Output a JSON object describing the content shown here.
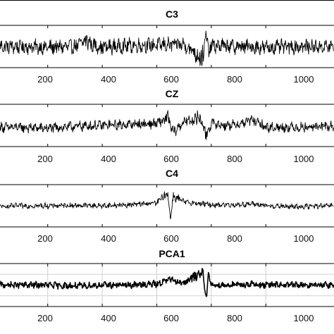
{
  "chart_data": [
    {
      "type": "line",
      "title": "C3",
      "xlabel": "",
      "ylabel": "",
      "xlim": [
        25,
        1250
      ],
      "xticks": [
        200,
        400,
        600,
        800,
        1000
      ],
      "xtick_labels": [
        "200",
        "400",
        "600",
        "800",
        "1000"
      ],
      "grid": false,
      "series": [
        {
          "x": [
            25,
            100,
            200,
            300,
            345,
            360,
            400,
            500,
            600,
            700,
            770,
            780,
            790,
            800,
            900,
            1000,
            1100,
            1250
          ],
          "y": [
            0.0,
            0.0,
            -0.05,
            0.0,
            0.35,
            0.1,
            -0.05,
            0.05,
            0.08,
            0.1,
            -0.6,
            0.7,
            -0.3,
            0.05,
            0.0,
            -0.05,
            0.0,
            0.0
          ]
        }
      ]
    },
    {
      "type": "line",
      "title": "CZ",
      "xlabel": "",
      "ylabel": "",
      "xlim": [
        25,
        1250
      ],
      "xticks": [
        200,
        400,
        600,
        800,
        1000
      ],
      "xtick_labels": [
        "200",
        "400",
        "600",
        "800",
        "1000"
      ],
      "grid": false,
      "series": [
        {
          "x": [
            25,
            100,
            200,
            300,
            400,
            500,
            600,
            640,
            660,
            700,
            760,
            780,
            800,
            850,
            900,
            950,
            1000,
            1100,
            1250
          ],
          "y": [
            -0.1,
            -0.1,
            -0.15,
            -0.05,
            0.0,
            0.05,
            0.1,
            0.4,
            -0.4,
            0.2,
            0.4,
            -0.5,
            0.1,
            0.0,
            0.05,
            0.3,
            -0.1,
            -0.1,
            -0.05
          ]
        }
      ]
    },
    {
      "type": "line",
      "title": "C4",
      "xlabel": "",
      "ylabel": "",
      "xlim": [
        25,
        1250
      ],
      "xticks": [
        200,
        400,
        600,
        800,
        1000
      ],
      "xtick_labels": [
        "200",
        "400",
        "600",
        "800",
        "1000"
      ],
      "grid": false,
      "series": [
        {
          "x": [
            25,
            100,
            200,
            300,
            400,
            500,
            600,
            640,
            650,
            660,
            700,
            800,
            900,
            950,
            1000,
            1100,
            1250
          ],
          "y": [
            -0.05,
            0.0,
            0.0,
            0.02,
            0.0,
            0.05,
            0.15,
            0.7,
            -0.7,
            0.5,
            0.2,
            0.05,
            0.05,
            0.1,
            0.0,
            -0.05,
            0.0
          ]
        }
      ]
    },
    {
      "type": "line",
      "title": "PCA1",
      "xlabel": "",
      "ylabel": "",
      "xlim": [
        25,
        1250
      ],
      "xticks": [
        200,
        400,
        600,
        800,
        1000
      ],
      "xtick_labels": [
        "200",
        "400",
        "600",
        "800",
        "1000"
      ],
      "grid": true,
      "series": [
        {
          "x": [
            25,
            100,
            200,
            300,
            400,
            500,
            600,
            650,
            700,
            770,
            780,
            790,
            800,
            900,
            950,
            1000,
            1100,
            1250
          ],
          "y": [
            0.0,
            0.0,
            0.0,
            -0.05,
            0.0,
            0.0,
            0.05,
            0.3,
            0.1,
            0.7,
            -0.7,
            0.5,
            0.0,
            0.0,
            0.05,
            0.0,
            0.0,
            0.0
          ]
        }
      ]
    }
  ]
}
